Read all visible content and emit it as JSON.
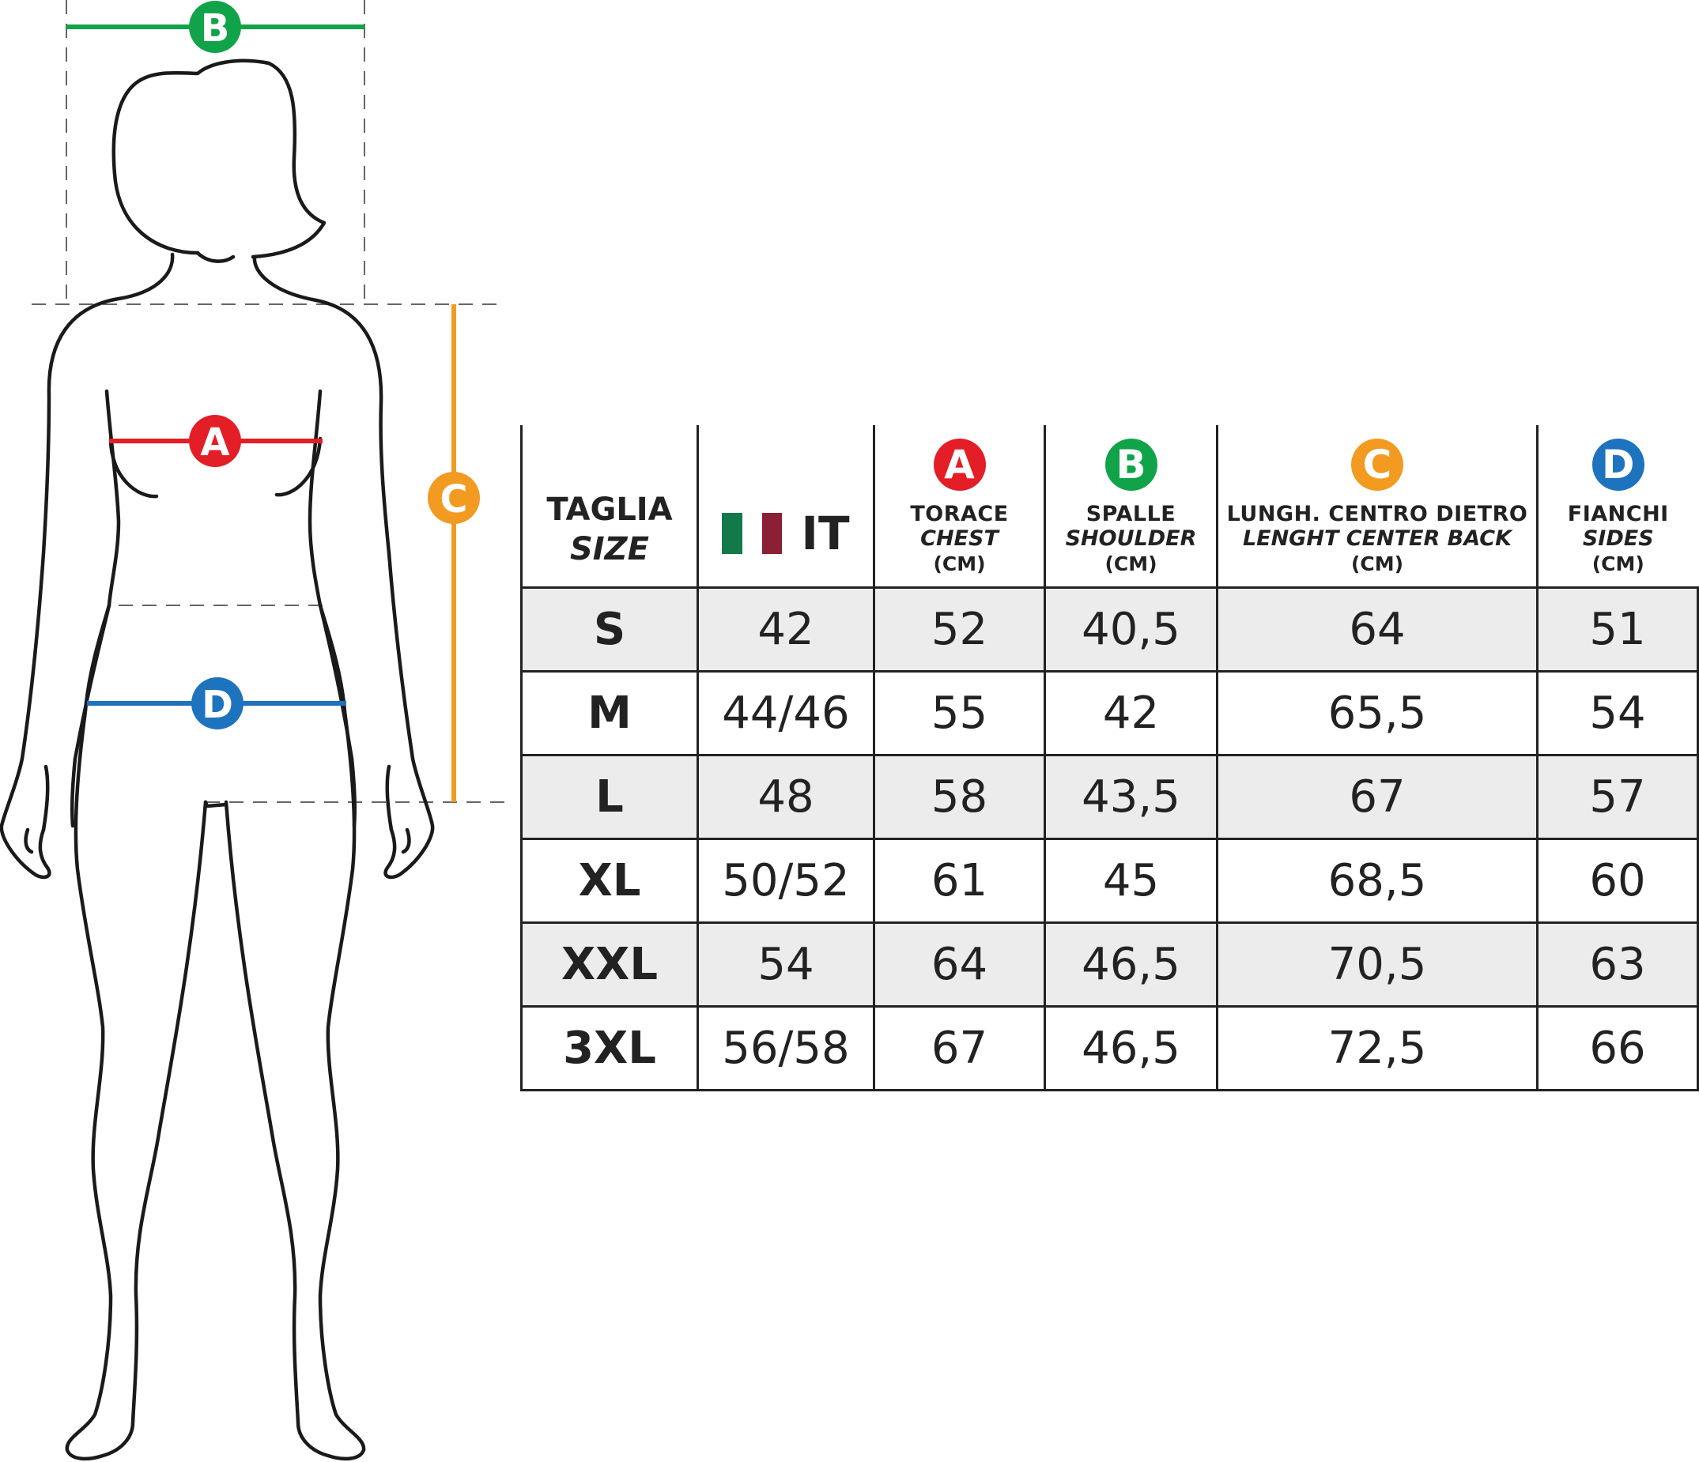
{
  "measures": {
    "A": {
      "letter": "A",
      "color": "#e31e26"
    },
    "B": {
      "letter": "B",
      "color": "#11a34a"
    },
    "C": {
      "letter": "C",
      "color": "#f39a21"
    },
    "D": {
      "letter": "D",
      "color": "#1e73be"
    }
  },
  "flag_colors": [
    "#11794a",
    "#ffffff",
    "#8b1f33"
  ],
  "table": {
    "header": {
      "size": {
        "it": "TAGLIA",
        "en": "SIZE"
      },
      "country": "IT",
      "chest": {
        "it": "TORACE",
        "en": "CHEST",
        "unit": "(CM)"
      },
      "shoulder": {
        "it": "SPALLE",
        "en": "SHOULDER",
        "unit": "(CM)"
      },
      "back": {
        "it": "LUNGH. CENTRO DIETRO",
        "en": "LENGHT CENTER BACK",
        "unit": "(CM)"
      },
      "sides": {
        "it": "FIANCHI",
        "en": "SIDES",
        "unit": "(CM)"
      }
    },
    "rows": [
      {
        "size": "S",
        "it": "42",
        "chest": "52",
        "shoulder": "40,5",
        "back": "64",
        "sides": "51"
      },
      {
        "size": "M",
        "it": "44/46",
        "chest": "55",
        "shoulder": "42",
        "back": "65,5",
        "sides": "54"
      },
      {
        "size": "L",
        "it": "48",
        "chest": "58",
        "shoulder": "43,5",
        "back": "67",
        "sides": "57"
      },
      {
        "size": "XL",
        "it": "50/52",
        "chest": "61",
        "shoulder": "45",
        "back": "68,5",
        "sides": "60"
      },
      {
        "size": "XXL",
        "it": "54",
        "chest": "64",
        "shoulder": "46,5",
        "back": "70,5",
        "sides": "63"
      },
      {
        "size": "3XL",
        "it": "56/58",
        "chest": "67",
        "shoulder": "46,5",
        "back": "72,5",
        "sides": "66"
      }
    ]
  }
}
